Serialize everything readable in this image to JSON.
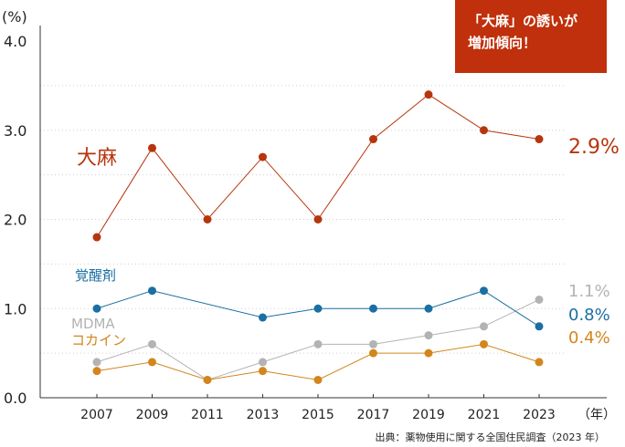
{
  "callout": {
    "line1": "「大麻」の誘いが",
    "line2": "増加傾向！"
  },
  "source": "出典：薬物使用に関する全国住民調査（2023 年）",
  "colors": {
    "cannabis": "#b7350e",
    "stimulants": "#1a6fa3",
    "mdma": "#b3b3b3",
    "cocaine": "#d2861d",
    "callout_bg": "#c0300c"
  },
  "chart_data": {
    "type": "line",
    "y_unit": "(%)",
    "x_unit": "（年）",
    "ylim": [
      0,
      4.0
    ],
    "yticks": [
      "4.0",
      "3.0",
      "2.0",
      "1.0",
      "0.0"
    ],
    "x": [
      "2007",
      "2009",
      "2011",
      "2013",
      "2015",
      "2017",
      "2019",
      "2021",
      "2023"
    ],
    "grid": "dotted horizontal",
    "series": [
      {
        "key": "cannabis",
        "name": "大麻",
        "color": "#b7350e",
        "end_label": "2.9%",
        "values": [
          1.8,
          2.8,
          2.0,
          2.7,
          2.0,
          2.9,
          3.4,
          3.0,
          2.9
        ]
      },
      {
        "key": "stimulants",
        "name": "覚醒剤",
        "color": "#1a6fa3",
        "end_label": "0.8%",
        "values": [
          1.0,
          1.2,
          null,
          0.9,
          1.0,
          1.0,
          1.0,
          1.2,
          0.8
        ]
      },
      {
        "key": "mdma",
        "name": "MDMA",
        "color": "#b3b3b3",
        "end_label": "1.1%",
        "values": [
          0.4,
          0.6,
          0.2,
          0.4,
          0.6,
          0.6,
          0.7,
          0.8,
          1.1
        ]
      },
      {
        "key": "cocaine",
        "name": "コカイン",
        "color": "#d2861d",
        "end_label": "0.4%",
        "values": [
          0.3,
          0.4,
          0.2,
          0.3,
          0.2,
          0.5,
          0.5,
          0.6,
          0.4
        ]
      }
    ]
  }
}
